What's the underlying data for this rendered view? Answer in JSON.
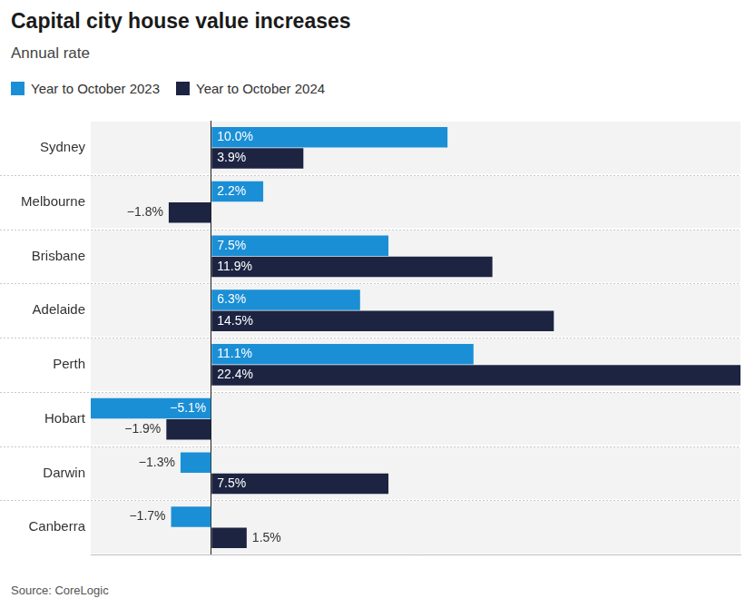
{
  "chart_data": {
    "type": "bar",
    "title": "Capital city house value increases",
    "subtitle": "Annual rate",
    "source": "Source: CoreLogic",
    "orientation": "horizontal",
    "categories": [
      "Sydney",
      "Melbourne",
      "Brisbane",
      "Adelaide",
      "Perth",
      "Hobart",
      "Darwin",
      "Canberra"
    ],
    "series": [
      {
        "name": "Year to October 2023",
        "color": "#1b8fd6",
        "values": [
          10.0,
          2.2,
          7.5,
          6.3,
          11.1,
          -5.1,
          -1.3,
          -1.7
        ],
        "value_labels": [
          "10.0%",
          "2.2%",
          "7.5%",
          "6.3%",
          "11.1%",
          "−5.1%",
          "−1.3%",
          "−1.7%"
        ]
      },
      {
        "name": "Year to October 2024",
        "color": "#1c2442",
        "values": [
          3.9,
          -1.8,
          11.9,
          14.5,
          22.4,
          -1.9,
          7.5,
          1.5
        ],
        "value_labels": [
          "3.9%",
          "−1.8%",
          "11.9%",
          "14.5%",
          "22.4%",
          "−1.9%",
          "7.5%",
          "1.5%"
        ]
      }
    ],
    "xlim": [
      -5.1,
      22.4
    ],
    "xticks": [
      0
    ],
    "grid": true,
    "legend": "top-left",
    "data_labels": true,
    "tick_labels": "y"
  }
}
